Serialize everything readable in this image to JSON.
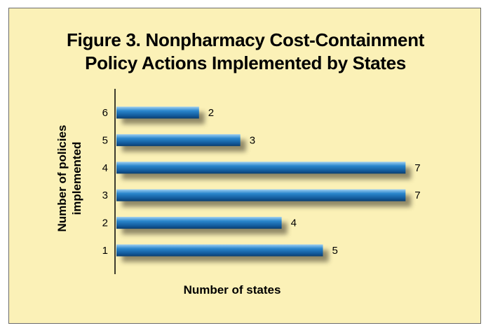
{
  "chart_data": {
    "type": "bar",
    "orientation": "horizontal",
    "title_lines": [
      "Figure 3. Nonpharmacy Cost-Containment",
      "Policy Actions Implemented by States"
    ],
    "title": "Figure 3. Nonpharmacy Cost-Containment Policy Actions Implemented by States",
    "ylabel_lines": [
      "Number of policies",
      "implemented"
    ],
    "xlabel": "Number of states",
    "categories": [
      "6",
      "5",
      "4",
      "3",
      "2",
      "1"
    ],
    "values": [
      2,
      3,
      7,
      7,
      4,
      5
    ],
    "xlim": [
      0,
      7
    ],
    "grid": false,
    "bar_color": "#1f74b8"
  }
}
